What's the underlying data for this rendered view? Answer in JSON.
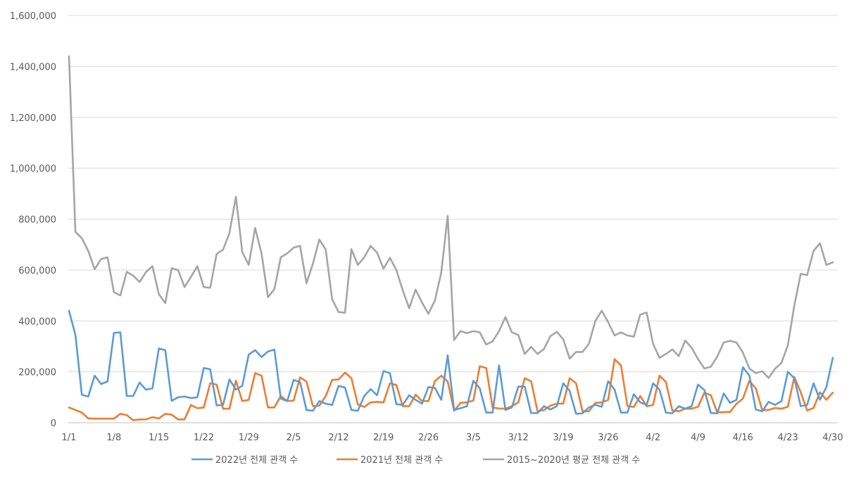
{
  "chart_data": {
    "type": "line",
    "ylim": [
      0,
      1600000
    ],
    "yticks": [
      0,
      200000,
      400000,
      600000,
      800000,
      1000000,
      1200000,
      1400000,
      1600000
    ],
    "ytick_labels": [
      "0",
      "200,000",
      "400,000",
      "600,000",
      "800,000",
      "1,000,000",
      "1,200,000",
      "1,400,000",
      "1,600,000"
    ],
    "xtick_labels": [
      "1/1",
      "1/8",
      "1/15",
      "1/22",
      "1/29",
      "2/5",
      "2/12",
      "2/19",
      "2/26",
      "3/5",
      "3/12",
      "3/19",
      "3/26",
      "4/2",
      "4/9",
      "4/16",
      "4/23",
      "4/30"
    ],
    "xtick_indices": [
      0,
      7,
      14,
      21,
      28,
      35,
      42,
      49,
      56,
      63,
      70,
      77,
      84,
      91,
      98,
      105,
      112,
      119
    ],
    "grid": true,
    "legend_position": "bottom",
    "n_points": 120,
    "series": [
      {
        "name": "2022년 전체 관객 수",
        "color": "#5b9bd5",
        "values": [
          440000,
          345000,
          110000,
          103000,
          185000,
          152000,
          162000,
          353000,
          355000,
          105000,
          105000,
          158000,
          130000,
          135000,
          292000,
          285000,
          86000,
          100000,
          103000,
          97000,
          100000,
          215000,
          210000,
          68000,
          70000,
          170000,
          130000,
          145000,
          268000,
          285000,
          258000,
          280000,
          287000,
          95000,
          85000,
          168000,
          160000,
          50000,
          47000,
          85000,
          75000,
          70000,
          145000,
          138000,
          50000,
          47000,
          105000,
          132000,
          108000,
          203000,
          195000,
          73000,
          70000,
          108000,
          90000,
          75000,
          140000,
          137000,
          90000,
          265000,
          50000,
          57000,
          65000,
          165000,
          135000,
          40000,
          40000,
          225000,
          50000,
          60000,
          142000,
          142000,
          38000,
          38000,
          65000,
          52000,
          65000,
          155000,
          125000,
          35000,
          37000,
          60000,
          70000,
          63000,
          163000,
          130000,
          40000,
          40000,
          112000,
          80000,
          70000,
          155000,
          130000,
          40000,
          37000,
          65000,
          55000,
          65000,
          150000,
          128000,
          38000,
          37000,
          115000,
          78000,
          90000,
          218000,
          185000,
          52000,
          45000,
          82000,
          70000,
          85000,
          200000,
          175000,
          65000,
          70000,
          155000,
          90000,
          140000,
          255000
        ]
      },
      {
        "name": "2021년 전체 관객 수",
        "color": "#ed7d31",
        "values": [
          60000,
          50000,
          40000,
          17000,
          16000,
          16000,
          16000,
          16000,
          35000,
          30000,
          10000,
          13000,
          13000,
          22000,
          17000,
          35000,
          32000,
          13000,
          13000,
          70000,
          57000,
          60000,
          155000,
          150000,
          55000,
          55000,
          165000,
          85000,
          90000,
          195000,
          185000,
          60000,
          60000,
          105000,
          85000,
          87000,
          178000,
          162000,
          65000,
          67000,
          105000,
          168000,
          170000,
          197000,
          175000,
          72000,
          62000,
          80000,
          82000,
          80000,
          155000,
          148000,
          65000,
          65000,
          110000,
          85000,
          85000,
          163000,
          185000,
          162000,
          47000,
          78000,
          80000,
          87000,
          222000,
          215000,
          60000,
          56000,
          55000,
          65000,
          80000,
          175000,
          163000,
          45000,
          50000,
          67000,
          75000,
          75000,
          175000,
          155000,
          45000,
          45000,
          78000,
          80000,
          90000,
          250000,
          225000,
          65000,
          62000,
          105000,
          65000,
          70000,
          185000,
          160000,
          48000,
          45000,
          55000,
          55000,
          63000,
          118000,
          108000,
          40000,
          42000,
          42000,
          75000,
          95000,
          165000,
          135000,
          50000,
          50000,
          58000,
          55000,
          63000,
          180000,
          120000,
          48000,
          58000,
          120000,
          90000,
          118000
        ]
      },
      {
        "name": "2015~2020년 평균 전체 관객 수",
        "color": "#a5a5a5",
        "values": [
          1440000,
          750000,
          725000,
          675000,
          603000,
          643000,
          650000,
          513000,
          500000,
          593000,
          578000,
          553000,
          592000,
          615000,
          505000,
          470000,
          607000,
          600000,
          533000,
          573000,
          615000,
          533000,
          530000,
          663000,
          680000,
          745000,
          888000,
          670000,
          620000,
          765000,
          665000,
          493000,
          525000,
          650000,
          665000,
          688000,
          695000,
          548000,
          625000,
          720000,
          680000,
          485000,
          435000,
          432000,
          682000,
          620000,
          650000,
          695000,
          668000,
          605000,
          648000,
          600000,
          520000,
          450000,
          523000,
          472000,
          428000,
          480000,
          590000,
          813000,
          325000,
          360000,
          352000,
          360000,
          355000,
          307000,
          320000,
          360000,
          415000,
          355000,
          345000,
          270000,
          298000,
          270000,
          290000,
          340000,
          357000,
          328000,
          252000,
          278000,
          278000,
          310000,
          400000,
          440000,
          395000,
          343000,
          355000,
          343000,
          338000,
          425000,
          433000,
          310000,
          255000,
          270000,
          288000,
          262000,
          323000,
          295000,
          250000,
          213000,
          220000,
          260000,
          315000,
          322000,
          315000,
          275000,
          213000,
          195000,
          202000,
          176000,
          212000,
          235000,
          305000,
          460000,
          585000,
          580000,
          675000,
          705000,
          620000,
          630000
        ]
      }
    ]
  }
}
